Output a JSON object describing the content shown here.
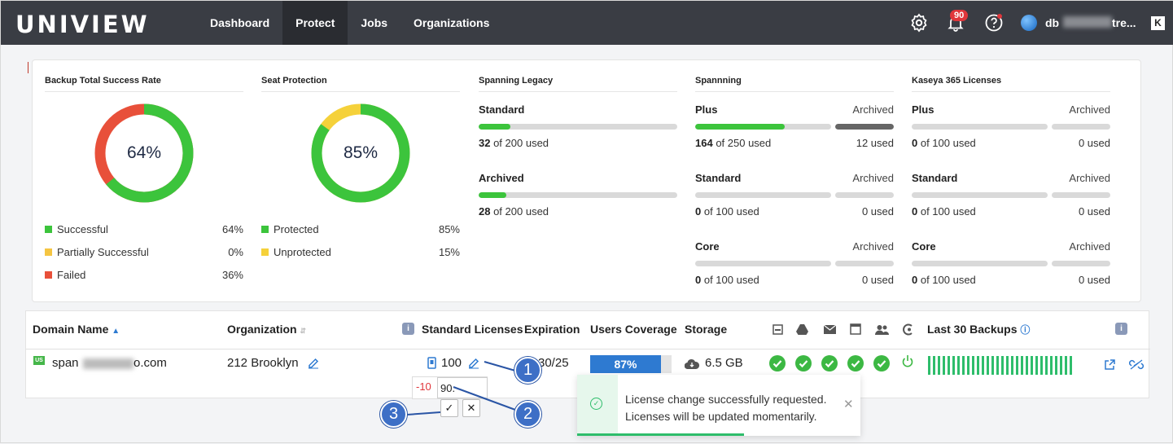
{
  "app": {
    "logo": "UNIVIEW"
  },
  "nav": {
    "items": [
      "Dashboard",
      "Protect",
      "Jobs",
      "Organizations"
    ],
    "active": "Protect"
  },
  "header": {
    "notifications_count": "90",
    "user_name": "db",
    "user_name_suffix": "tre..."
  },
  "summary": {
    "backup": {
      "title": "Backup Total Success Rate",
      "center": "64%",
      "legend": [
        {
          "label": "Successful",
          "value": "64%",
          "color": "#3cc43c"
        },
        {
          "label": "Partially Successful",
          "value": "0%",
          "color": "#f5c542"
        },
        {
          "label": "Failed",
          "value": "36%",
          "color": "#e8503a"
        }
      ]
    },
    "seat": {
      "title": "Seat Protection",
      "center": "85%",
      "legend": [
        {
          "label": "Protected",
          "value": "85%",
          "color": "#3cc43c"
        },
        {
          "label": "Unprotected",
          "value": "15%",
          "color": "#f5d13a"
        }
      ]
    },
    "legacy": {
      "title": "Spanning Legacy",
      "rows": [
        {
          "label": "Standard",
          "used_num": "32",
          "used_rest": " of 200 used",
          "fraction": 0.16
        },
        {
          "label": "Archived",
          "used_num": "28",
          "used_rest": " of 200 used",
          "fraction": 0.14
        }
      ]
    },
    "spanning": {
      "title": "Spannning",
      "archived_label": "Archived",
      "rows": [
        {
          "label": "Plus",
          "used_num": "164",
          "used_rest": " of 250 used",
          "fraction": 0.656,
          "archived_used": "12 used",
          "archived_fraction": 1.0
        },
        {
          "label": "Standard",
          "used_num": "0",
          "used_rest": " of 100 used",
          "fraction": 0,
          "archived_used": "0 used",
          "archived_fraction": 0
        },
        {
          "label": "Core",
          "used_num": "0",
          "used_rest": " of 100 used",
          "fraction": 0,
          "archived_used": "0 used",
          "archived_fraction": 0
        }
      ]
    },
    "kaseya": {
      "title": "Kaseya 365 Licenses",
      "archived_label": "Archived",
      "rows": [
        {
          "label": "Plus",
          "used_num": "0",
          "used_rest": " of 100 used",
          "archived_used": "0 used"
        },
        {
          "label": "Standard",
          "used_num": "0",
          "used_rest": " of 100 used",
          "archived_used": "0 used"
        },
        {
          "label": "Core",
          "used_num": "0",
          "used_rest": " of 100 used",
          "archived_used": "0 used"
        }
      ]
    }
  },
  "table": {
    "headers": {
      "domain": "Domain Name",
      "organization": "Organization",
      "licenses": "Standard Licenses",
      "expiration": "Expiration",
      "coverage": "Users Coverage",
      "storage": "Storage",
      "backups": "Last 30 Backups"
    },
    "row": {
      "flag": "US",
      "domain_start": "span",
      "domain_end": "o.com",
      "organization": "212 Brooklyn",
      "licenses": "100",
      "expiration": "30/25",
      "coverage": "87%",
      "coverage_fraction": 0.87,
      "storage": "6.5 GB"
    },
    "edit": {
      "delta": "-10",
      "value": "90."
    }
  },
  "toast": {
    "line1": "License change successfully requested.",
    "line2": "Licenses will be updated momentarily.",
    "progress": 0.59
  },
  "callouts": [
    "1",
    "2",
    "3"
  ]
}
